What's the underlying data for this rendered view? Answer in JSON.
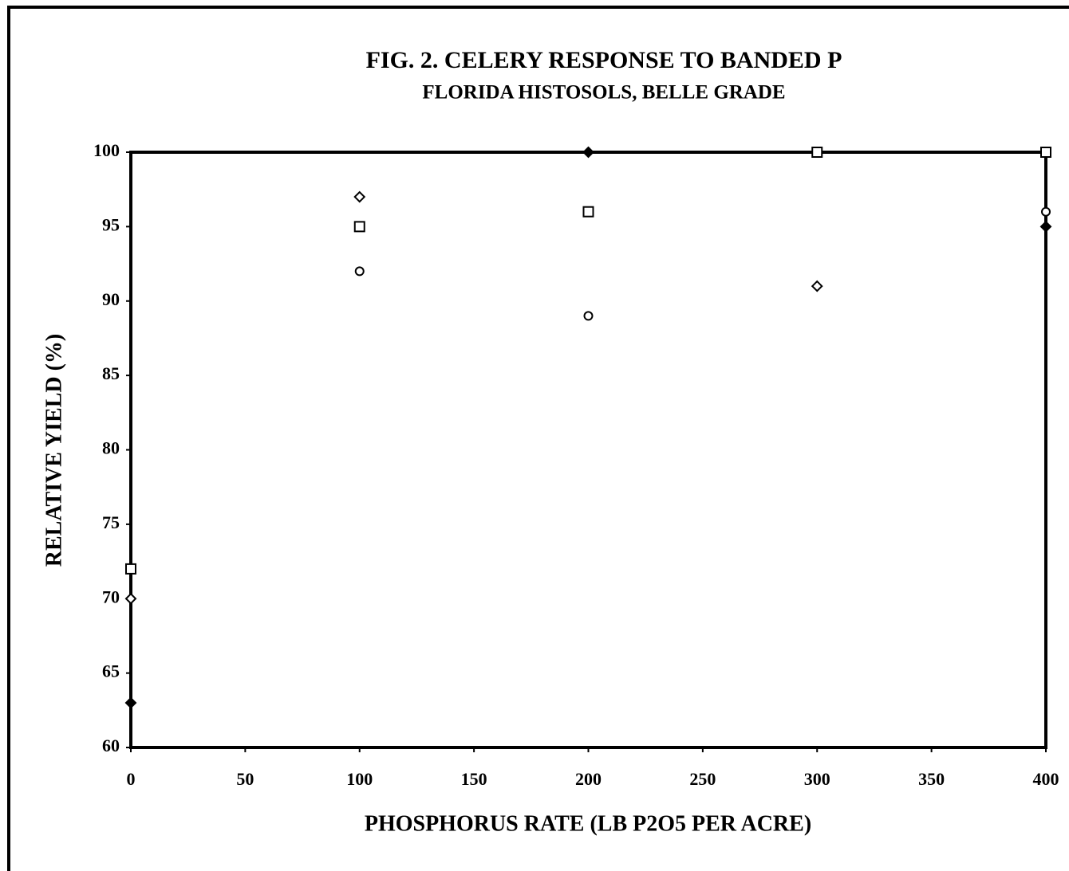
{
  "chart_data": {
    "type": "scatter",
    "title": "FIG. 2.  CELERY RESPONSE TO BANDED P",
    "subtitle": "FLORIDA HISTOSOLS, BELLE GRADE",
    "x_label": "PHOSPHORUS RATE (LB P2O5 PER ACRE)",
    "y_label": "RELATIVE YIELD (%)",
    "xlim": [
      0,
      400
    ],
    "xticks": [
      0,
      50,
      100,
      150,
      200,
      250,
      300,
      350,
      400
    ],
    "ylim": [
      60,
      100
    ],
    "yticks": [
      60,
      65,
      70,
      75,
      80,
      85,
      90,
      95,
      100
    ],
    "series": [
      {
        "marker": "filled-diamond",
        "color": "#000000",
        "x": [
          0,
          200,
          400
        ],
        "values": [
          63,
          100,
          95
        ]
      },
      {
        "marker": "open-diamond",
        "color": "#000000",
        "x": [
          0,
          100,
          300
        ],
        "values": [
          70,
          97,
          91
        ]
      },
      {
        "marker": "open-square",
        "color": "#000000",
        "x": [
          0,
          100,
          200,
          300,
          400
        ],
        "values": [
          72,
          95,
          96,
          100,
          100
        ]
      },
      {
        "marker": "open-circle",
        "color": "#000000",
        "x": [
          100,
          200,
          400
        ],
        "values": [
          92,
          89,
          96
        ]
      }
    ]
  }
}
